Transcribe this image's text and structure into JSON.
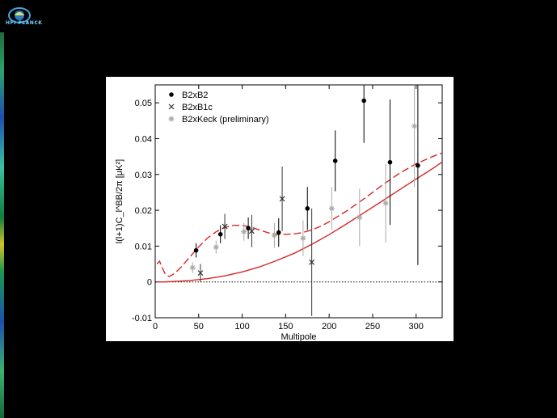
{
  "logo": {
    "text": "HFI PLANCK"
  },
  "colors": {
    "background": "#000000",
    "panel": "#ffffff",
    "model": "#d62728",
    "b2": "#000000",
    "b1c": "#333333",
    "keck": "#aaaaaa"
  },
  "chart_data": {
    "type": "scatter",
    "title": "",
    "xlabel": "Multipole",
    "ylabel": "l(l+1)C_l^BB/2π [μK²]",
    "xlim": [
      0,
      330
    ],
    "ylim": [
      -0.01,
      0.055
    ],
    "xticks": [
      "0",
      "50",
      "100",
      "150",
      "200",
      "250",
      "300"
    ],
    "yticks": [
      "-0.01",
      "0",
      "0.01",
      "0.02",
      "0.03",
      "0.04",
      "0.05"
    ],
    "legend_position": "top-left",
    "grid": false,
    "series": [
      {
        "name": "B2xB2",
        "marker": "dot",
        "x": [
          47,
          75,
          107,
          142,
          175,
          207,
          240,
          270,
          302
        ],
        "y": [
          0.0088,
          0.0133,
          0.015,
          0.0138,
          0.0205,
          0.0338,
          0.0506,
          0.0334,
          0.0325
        ],
        "err": [
          0.002,
          0.0025,
          0.003,
          0.004,
          0.006,
          0.0085,
          0.0118,
          0.0175,
          0.0278
        ]
      },
      {
        "name": "B2xB1c",
        "marker": "x",
        "x": [
          52,
          80,
          111,
          146,
          180
        ],
        "y": [
          0.0025,
          0.0155,
          0.0142,
          0.0232,
          0.0055
        ],
        "err": [
          0.0025,
          0.0035,
          0.0045,
          0.009,
          0.015
        ]
      },
      {
        "name": "B2xKeck (preliminary)",
        "marker": "asterisk",
        "x": [
          43,
          70,
          102,
          137,
          170,
          203,
          235,
          265,
          298
        ],
        "y": [
          0.004,
          0.0097,
          0.014,
          0.013,
          0.0122,
          0.0205,
          0.018,
          0.022,
          0.0435
        ],
        "err": [
          0.0015,
          0.0018,
          0.0025,
          0.0035,
          0.005,
          0.006,
          0.008,
          0.011,
          0.017
        ]
      }
    ],
    "models": [
      {
        "style": "dashed",
        "x": [
          2,
          5,
          8,
          12,
          16,
          20,
          25,
          30,
          40,
          50,
          60,
          70,
          80,
          90,
          100,
          110,
          120,
          130,
          140,
          150,
          160,
          170,
          180,
          190,
          200,
          220,
          240,
          260,
          280,
          300,
          320,
          330
        ],
        "y": [
          0.005,
          0.0058,
          0.004,
          0.002,
          0.0015,
          0.002,
          0.003,
          0.0042,
          0.007,
          0.0098,
          0.0122,
          0.014,
          0.0152,
          0.0158,
          0.0158,
          0.0153,
          0.0145,
          0.0137,
          0.0133,
          0.0133,
          0.0134,
          0.0138,
          0.0145,
          0.0155,
          0.0168,
          0.0198,
          0.0232,
          0.0268,
          0.0302,
          0.033,
          0.0351,
          0.036
        ]
      },
      {
        "style": "solid",
        "x": [
          2,
          10,
          20,
          40,
          60,
          80,
          100,
          120,
          140,
          160,
          180,
          200,
          220,
          240,
          260,
          280,
          300,
          320,
          330
        ],
        "y": [
          0.0,
          0.0,
          0.0001,
          0.0004,
          0.0009,
          0.0017,
          0.0028,
          0.0042,
          0.006,
          0.008,
          0.0105,
          0.0132,
          0.0162,
          0.0193,
          0.0224,
          0.0256,
          0.0287,
          0.0318,
          0.0335
        ]
      }
    ]
  }
}
